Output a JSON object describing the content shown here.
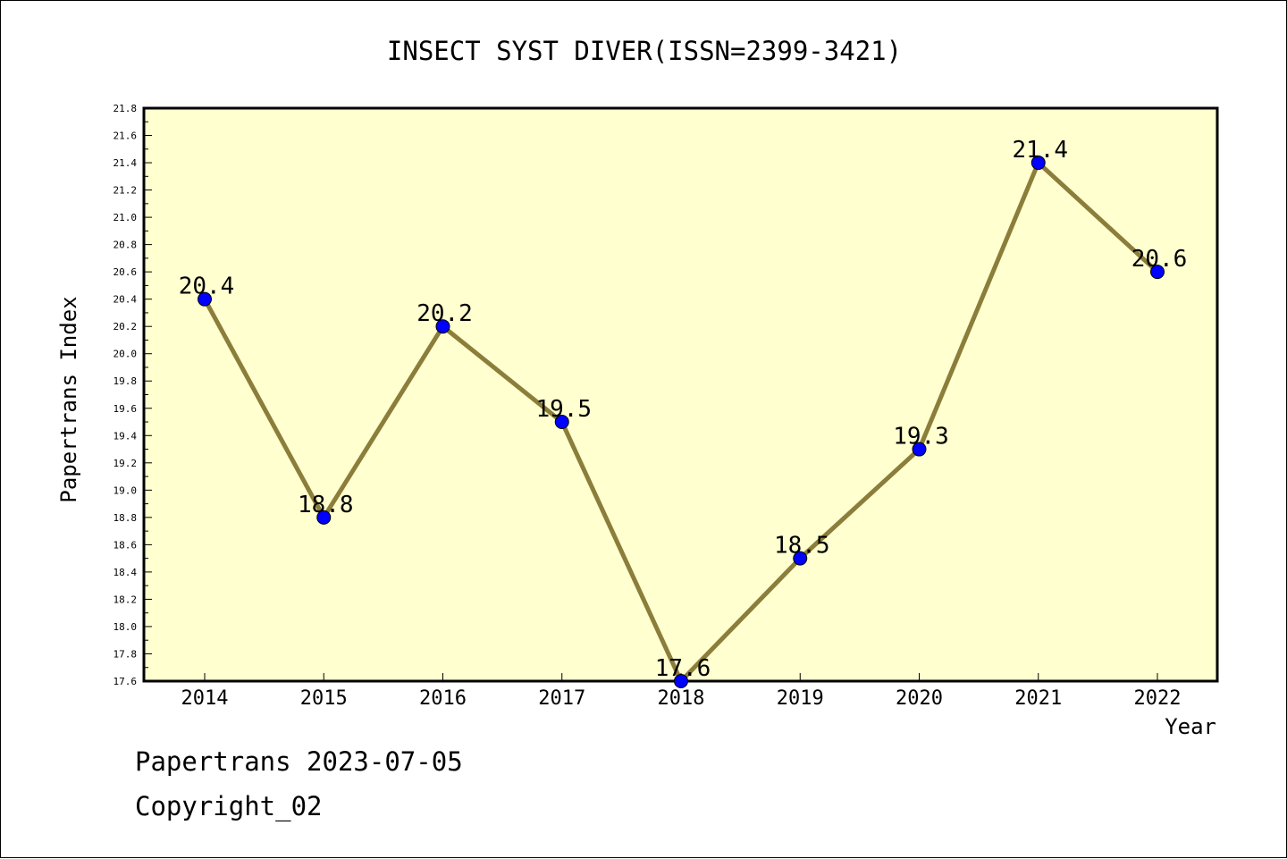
{
  "chart_data": {
    "type": "line",
    "title": "INSECT SYST DIVER(ISSN=2399-3421)",
    "xlabel": "Year",
    "ylabel": "Papertrans Index",
    "categories": [
      "2014",
      "2015",
      "2016",
      "2017",
      "2018",
      "2019",
      "2020",
      "2021",
      "2022"
    ],
    "series": [
      {
        "values": [
          20.4,
          18.8,
          20.2,
          19.5,
          17.6,
          18.5,
          19.3,
          21.4,
          20.6
        ],
        "labels": [
          "20.4",
          "18.8",
          "20.2",
          "19.5",
          "17.6",
          "18.5",
          "19.3",
          "21.4",
          "20.6"
        ]
      }
    ],
    "ylim": [
      17.6,
      21.8
    ],
    "yticks": [
      "17.6",
      "17.8",
      "18.0",
      "18.2",
      "18.4",
      "18.6",
      "18.8",
      "19.0",
      "19.2",
      "19.4",
      "19.6",
      "19.8",
      "20.0",
      "20.2",
      "20.4",
      "20.6",
      "20.8",
      "21.0",
      "21.2",
      "21.4",
      "21.6",
      "21.8"
    ],
    "grid": false,
    "legend": "none",
    "colors": {
      "plot_background": "#ffffd0",
      "line": "#8b7d3a",
      "marker": "#0000ff"
    }
  },
  "footer": {
    "line1": "Papertrans 2023-07-05",
    "line2": "Copyright_02"
  }
}
